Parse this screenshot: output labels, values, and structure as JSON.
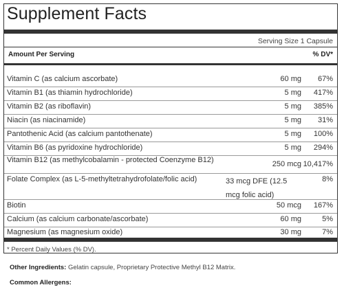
{
  "title": "Supplement Facts",
  "serving_size": "Serving Size 1 Capsule",
  "header": {
    "amount": "Amount Per Serving",
    "dv": "% DV*"
  },
  "nutrients": [
    {
      "name": "Vitamin C (as calcium ascorbate)",
      "amount": "60 mg",
      "dv": "67%"
    },
    {
      "name": "Vitamin B1 (as thiamin hydrochloride)",
      "amount": "5 mg",
      "dv": "417%"
    },
    {
      "name": "Vitamin B2 (as riboflavin)",
      "amount": "5 mg",
      "dv": "385%"
    },
    {
      "name": "Niacin (as niacinamide)",
      "amount": "5 mg",
      "dv": "31%"
    },
    {
      "name": "Pantothenic Acid (as calcium pantothenate)",
      "amount": "5 mg",
      "dv": "100%"
    },
    {
      "name": "Vitamin B6 (as pyridoxine hydrochloride)",
      "amount": "5 mg",
      "dv": "294%"
    },
    {
      "name": "Vitamin B12 (as methylcobalamin - protected Coenzyme B12)",
      "amount": "250 mcg",
      "dv": "10,417%"
    },
    {
      "name": "Folate Complex (as L-5-methyltetrahydrofolate/folic acid)",
      "amount": "33 mcg DFE (12.5 mcg folic acid)",
      "dv": "8%"
    },
    {
      "name": "Biotin",
      "amount": "50 mcg",
      "dv": "167%"
    },
    {
      "name": "Calcium (as calcium carbonate/ascorbate)",
      "amount": "60 mg",
      "dv": "5%"
    },
    {
      "name": "Magnesium (as magnesium oxide)",
      "amount": "30 mg",
      "dv": "7%"
    }
  ],
  "footnote": "* Percent Daily Values (% DV).",
  "other_ingredients": {
    "label": "Other Ingredients:",
    "text": " Gelatin capsule, Proprietary Protective Methyl B12 Matrix."
  },
  "allergens_label": "Common Allergens:"
}
